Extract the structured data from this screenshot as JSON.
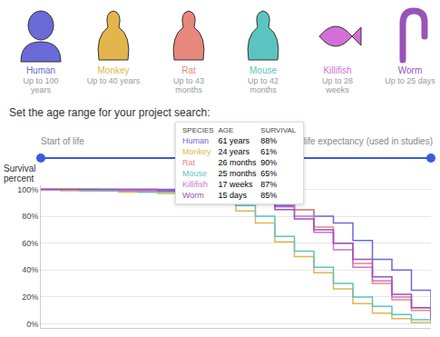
{
  "species": [
    {
      "name": "Human",
      "lifespan": "Up to 100 years",
      "color": "#6a6ad8"
    },
    {
      "name": "Monkey",
      "lifespan": "Up to 40 years",
      "color": "#e3b54c"
    },
    {
      "name": "Rat",
      "lifespan": "Up to 43 months",
      "color": "#e8877c"
    },
    {
      "name": "Mouse",
      "lifespan": "Up to 42 months",
      "color": "#5cc4c0"
    },
    {
      "name": "Killifish",
      "lifespan": "Up to 28 weeks",
      "color": "#d46fd6"
    },
    {
      "name": "Worm",
      "lifespan": "Up to 25 days",
      "color": "#9a52b8"
    }
  ],
  "prompt": "Set the age range for your project search:",
  "slider": {
    "start": "Start of life",
    "end": "life expectancy (used in studies)"
  },
  "tooltip": {
    "header": [
      "SPECIES",
      "AGE",
      "SURVIVAL"
    ],
    "rows": [
      [
        "Human",
        "61 years",
        "88%"
      ],
      [
        "Monkey",
        "24 years",
        "61%"
      ],
      [
        "Rat",
        "26 months",
        "90%"
      ],
      [
        "Mouse",
        "25 months",
        "65%"
      ],
      [
        "Killifish",
        "17 weeks",
        "87%"
      ],
      [
        "Worm",
        "15 days",
        "85%"
      ]
    ]
  },
  "chart_data": {
    "type": "line",
    "y_label": "Survival percent",
    "line_style": "step",
    "grid": true,
    "tick_labels": "y",
    "x": [
      0,
      0.05,
      0.1,
      0.15,
      0.2,
      0.25,
      0.3,
      0.35,
      0.4,
      0.45,
      0.5,
      0.55,
      0.6,
      0.65,
      0.7,
      0.75,
      0.8,
      0.85,
      0.9,
      0.95,
      1
    ],
    "xlim": [
      0,
      1
    ],
    "ylim": [
      -3,
      103
    ],
    "yticks": [
      {
        "value": 0,
        "label": "0%"
      },
      {
        "value": 20,
        "label": "20%"
      },
      {
        "value": 40,
        "label": "40%"
      },
      {
        "value": 60,
        "label": "60%"
      },
      {
        "value": 80,
        "label": "80%"
      },
      {
        "value": 100,
        "label": "100%"
      }
    ],
    "series": [
      {
        "name": "Human",
        "color": "#6a6ad8",
        "values": [
          100,
          100,
          100,
          100,
          100,
          100,
          100,
          99,
          99,
          98,
          96,
          93,
          88,
          85,
          80,
          75,
          62,
          48,
          40,
          25,
          8
        ]
      },
      {
        "name": "Monkey",
        "color": "#e3b54c",
        "values": [
          100,
          99,
          99,
          99,
          98,
          98,
          97,
          96,
          94,
          90,
          84,
          75,
          61,
          50,
          38,
          26,
          15,
          8,
          4,
          1,
          0
        ]
      },
      {
        "name": "Rat",
        "color": "#e8877c",
        "values": [
          100,
          100,
          100,
          99,
          99,
          99,
          99,
          98,
          98,
          97,
          95,
          93,
          90,
          85,
          72,
          60,
          45,
          30,
          18,
          10,
          3
        ]
      },
      {
        "name": "Mouse",
        "color": "#5cc4c0",
        "values": [
          100,
          100,
          99,
          99,
          99,
          98,
          98,
          97,
          95,
          92,
          88,
          80,
          65,
          54,
          42,
          30,
          20,
          13,
          7,
          3,
          1
        ]
      },
      {
        "name": "Killifish",
        "color": "#d46fd6",
        "values": [
          100,
          100,
          100,
          100,
          99,
          99,
          99,
          99,
          98,
          97,
          95,
          92,
          87,
          80,
          68,
          55,
          42,
          32,
          20,
          12,
          5
        ]
      },
      {
        "name": "Worm",
        "color": "#9a52b8",
        "values": [
          100,
          100,
          100,
          100,
          100,
          100,
          99,
          99,
          98,
          97,
          95,
          91,
          85,
          78,
          70,
          60,
          48,
          35,
          22,
          12,
          4
        ]
      }
    ]
  }
}
